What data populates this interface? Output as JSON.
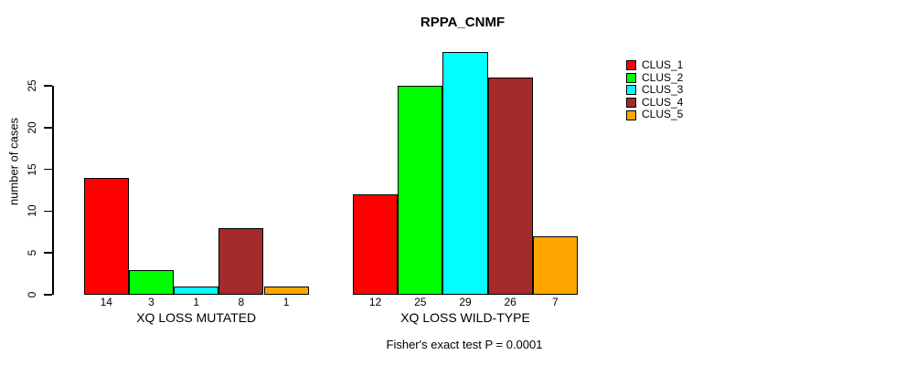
{
  "title": "RPPA_CNMF",
  "chart_data": {
    "type": "bar",
    "grouped": true,
    "title": "RPPA_CNMF",
    "ylabel": "number of cases",
    "xlabel": "",
    "categories": [
      "XQ LOSS MUTATED",
      "XQ LOSS WILD-TYPE"
    ],
    "series": [
      {
        "name": "CLUS_1",
        "color": "#FF0000",
        "values": [
          14,
          12
        ]
      },
      {
        "name": "CLUS_2",
        "color": "#00FF00",
        "values": [
          3,
          25
        ]
      },
      {
        "name": "CLUS_3",
        "color": "#00FFFF",
        "values": [
          1,
          29
        ]
      },
      {
        "name": "CLUS_4",
        "color": "#A52A2A",
        "values": [
          8,
          26
        ]
      },
      {
        "name": "CLUS_5",
        "color": "#FFA500",
        "values": [
          1,
          7
        ]
      }
    ],
    "bar_value_labels": {
      "XQ LOSS MUTATED": [
        14,
        3,
        1,
        8,
        1
      ],
      "XQ LOSS WILD-TYPE": [
        12,
        25,
        29,
        26,
        7
      ]
    },
    "yticks": [
      0,
      5,
      10,
      15,
      20,
      25
    ],
    "ylim": [
      0,
      29
    ],
    "grid": false,
    "legend_position": "right",
    "bar_border_color": "#000000",
    "background_color": "#FFFFFF",
    "caption": "Fisher's exact test P = 0.0001"
  }
}
